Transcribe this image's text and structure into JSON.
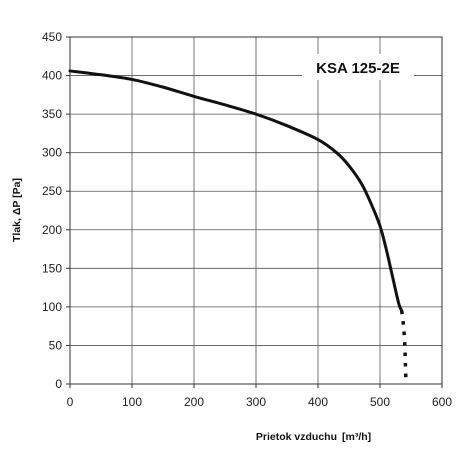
{
  "chart_data": {
    "type": "line",
    "title": "KSA 125-2E",
    "xlabel": "Prietok vzduchu",
    "xunit": "[m³/h]",
    "ylabel": "Tlak, ΔP [Pa]",
    "xlim": [
      0,
      600
    ],
    "ylim": [
      0,
      450
    ],
    "xticks": [
      "0",
      "100",
      "200",
      "300",
      "400",
      "500",
      "600"
    ],
    "yticks": [
      "0",
      "50",
      "100",
      "150",
      "200",
      "250",
      "300",
      "350",
      "400",
      "450"
    ],
    "grid": true,
    "legend": "none",
    "series": [
      {
        "style": "solid",
        "color": "#111111",
        "points": [
          [
            0,
            406
          ],
          [
            50,
            401
          ],
          [
            100,
            395
          ],
          [
            150,
            385
          ],
          [
            200,
            373
          ],
          [
            250,
            362
          ],
          [
            300,
            350
          ],
          [
            350,
            335
          ],
          [
            400,
            317
          ],
          [
            430,
            300
          ],
          [
            450,
            283
          ],
          [
            470,
            260
          ],
          [
            485,
            235
          ],
          [
            500,
            205
          ],
          [
            510,
            175
          ],
          [
            520,
            140
          ],
          [
            530,
            105
          ],
          [
            535,
            95
          ]
        ]
      },
      {
        "style": "dotted",
        "color": "#111111",
        "points": [
          [
            535,
            95
          ],
          [
            538,
            75
          ],
          [
            540,
            50
          ],
          [
            541,
            25
          ],
          [
            542,
            0
          ]
        ]
      }
    ]
  }
}
